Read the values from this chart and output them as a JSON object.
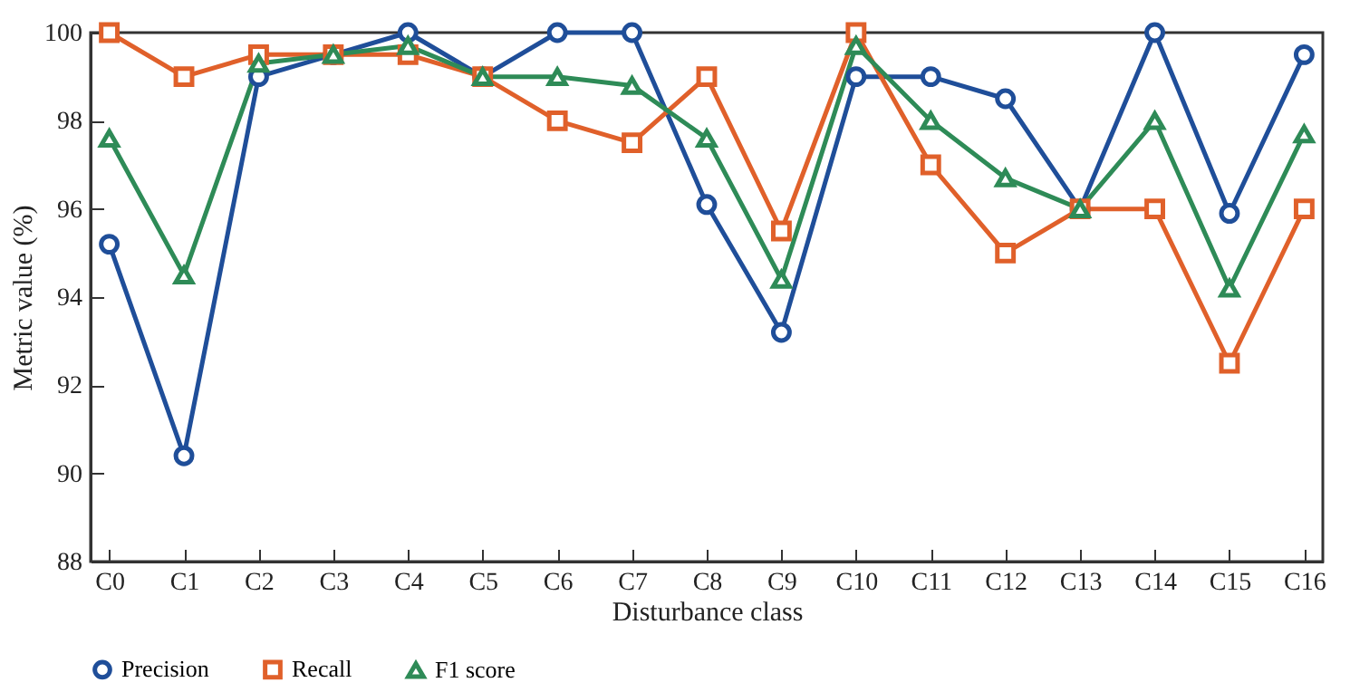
{
  "chart_data": {
    "type": "line",
    "xlabel": "Disturbance class",
    "ylabel": "Metric value (%)",
    "categories": [
      "C0",
      "C1",
      "C2",
      "C3",
      "C4",
      "C5",
      "C6",
      "C7",
      "C8",
      "C9",
      "C10",
      "C11",
      "C12",
      "C13",
      "C14",
      "C15",
      "C16"
    ],
    "series": [
      {
        "name": "Precision",
        "color": "#1f4e99",
        "marker": "circle",
        "values": [
          95.2,
          90.4,
          99.0,
          99.5,
          100,
          99.0,
          100,
          100,
          96.1,
          93.2,
          99.0,
          99.0,
          98.5,
          96.0,
          100,
          95.9,
          99.5
        ]
      },
      {
        "name": "Recall",
        "color": "#e0602a",
        "marker": "square",
        "values": [
          100,
          99.0,
          99.5,
          99.5,
          99.5,
          99.0,
          98.0,
          97.5,
          99.0,
          95.5,
          100,
          97.0,
          95.0,
          96.0,
          96.0,
          92.5,
          96.0
        ]
      },
      {
        "name": "F1 score",
        "color": "#2e8b57",
        "marker": "triangle",
        "values": [
          97.6,
          94.5,
          99.3,
          99.5,
          99.7,
          99.0,
          99.0,
          98.8,
          97.6,
          94.4,
          99.7,
          98.0,
          96.7,
          96.0,
          98.0,
          94.2,
          97.7
        ]
      }
    ],
    "ylim": [
      88,
      100
    ],
    "yticks": [
      88,
      90,
      92,
      94,
      96,
      98,
      100
    ],
    "grid": false,
    "legend": "bottom",
    "line_style": "solid"
  }
}
